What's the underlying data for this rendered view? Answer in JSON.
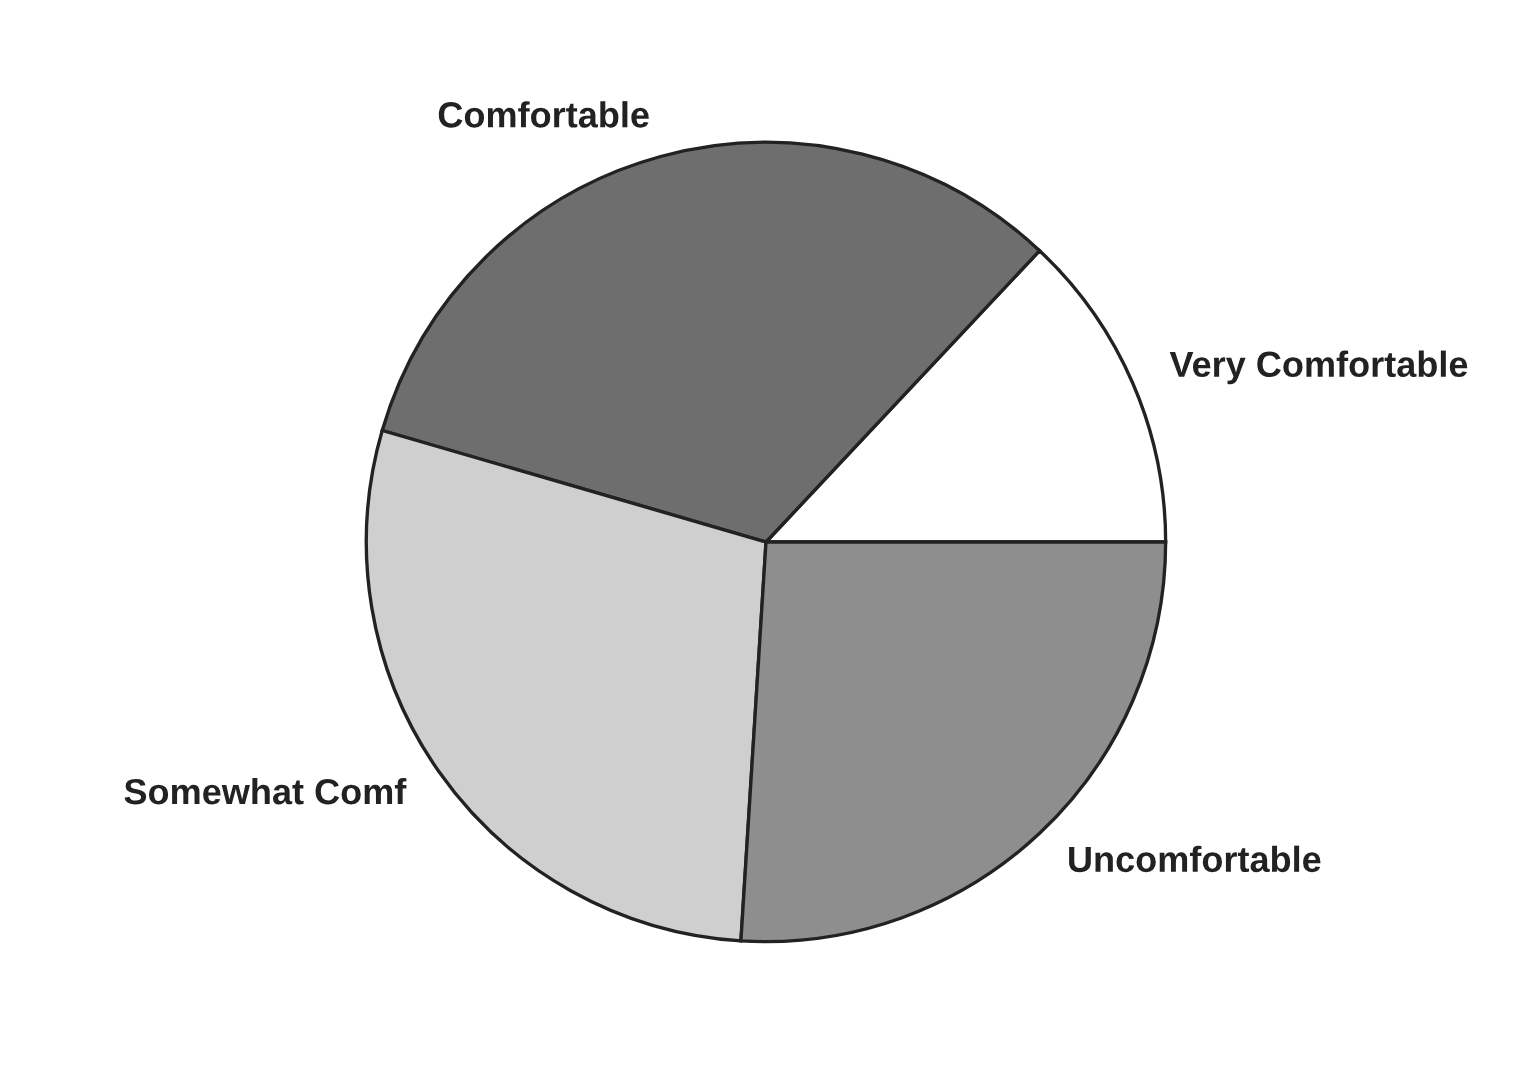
{
  "chart_data": {
    "type": "pie",
    "categories": [
      "Very Comfortable",
      "Comfortable",
      "Somewhat Comf",
      "Uncomfortable"
    ],
    "values": [
      13,
      32.5,
      28.5,
      26
    ],
    "colors": [
      "#ffffff",
      "#6e6e6e",
      "#cfcfcf",
      "#8e8e8e"
    ],
    "legend": false
  }
}
